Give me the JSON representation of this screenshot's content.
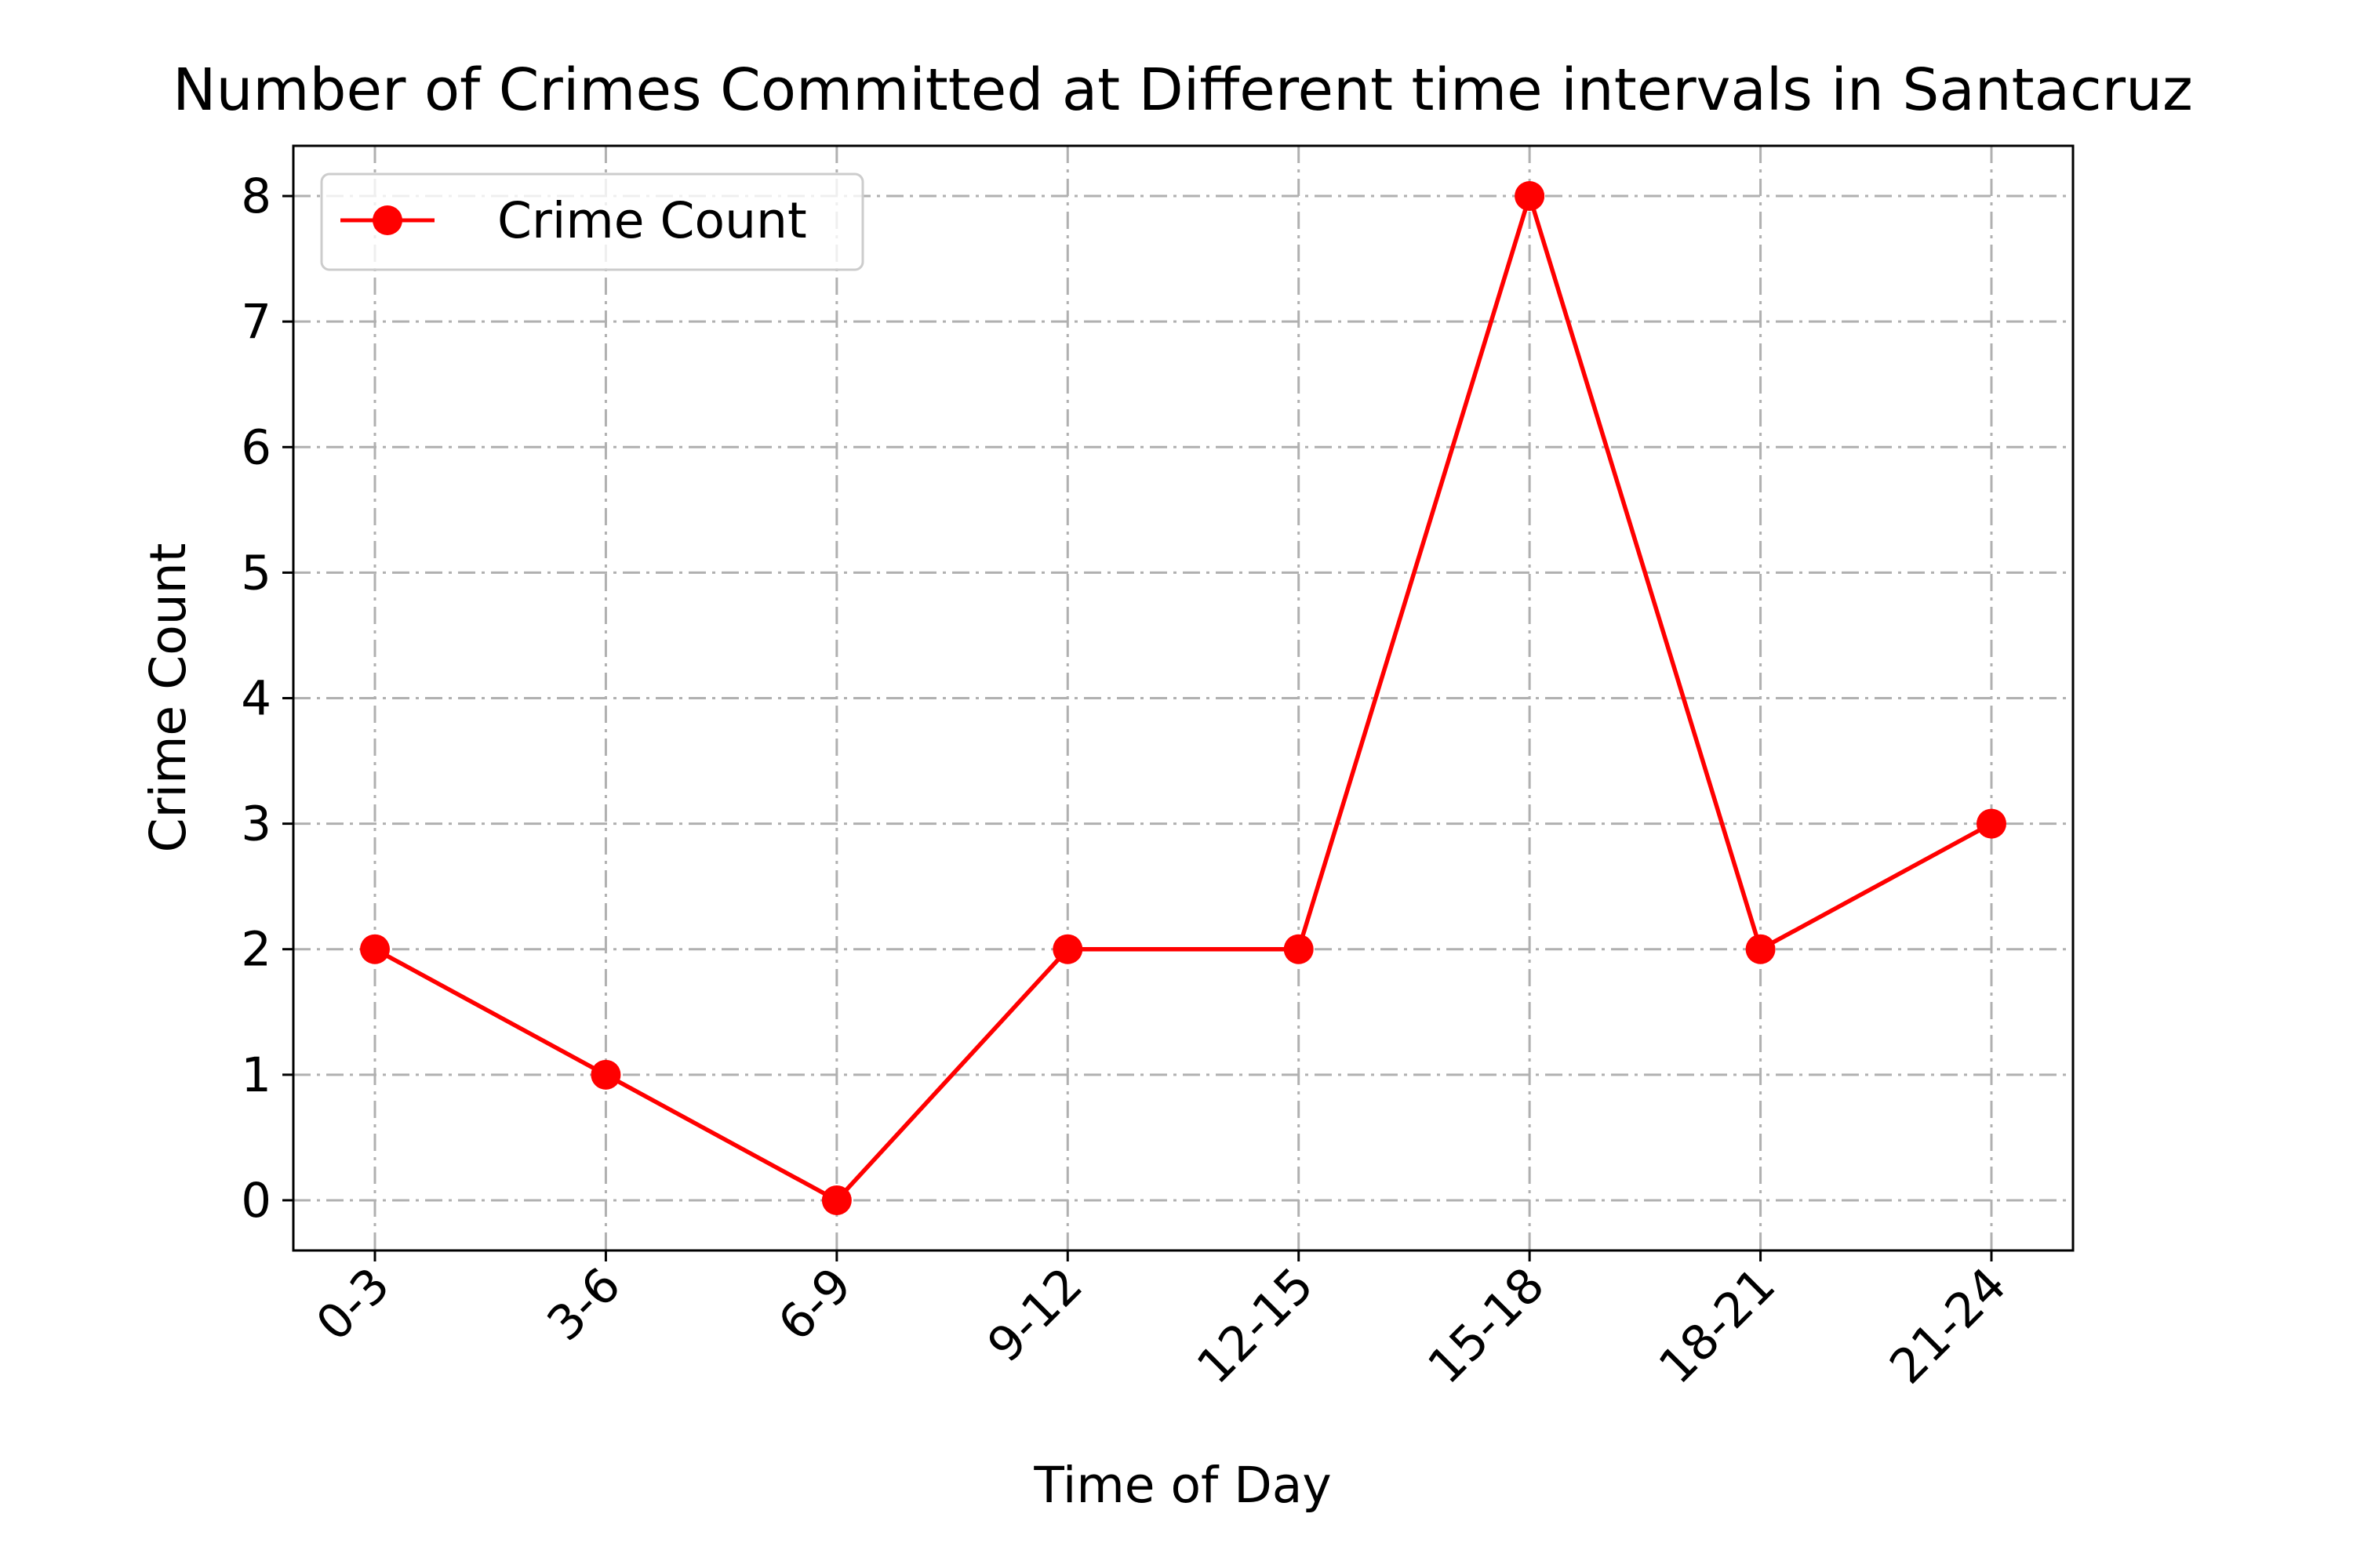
{
  "chart_data": {
    "type": "line",
    "title": "Number of Crimes Committed at Different time intervals in Santacruz",
    "xlabel": "Time of Day",
    "ylabel": "Crime Count",
    "categories": [
      "0-3",
      "3-6",
      "6-9",
      "9-12",
      "12-15",
      "15-18",
      "18-21",
      "21-24"
    ],
    "series": [
      {
        "name": "Crime Count",
        "values": [
          2,
          1,
          0,
          2,
          2,
          8,
          2,
          3
        ],
        "color": "#ff0000",
        "marker": "circle"
      }
    ],
    "ylim": [
      -0.4,
      8.4
    ],
    "yticks": [
      0,
      1,
      2,
      3,
      4,
      5,
      6,
      7,
      8
    ],
    "grid": true,
    "grid_style": "dash-dot",
    "legend_position": "top-left",
    "xtick_rotation": 45
  }
}
